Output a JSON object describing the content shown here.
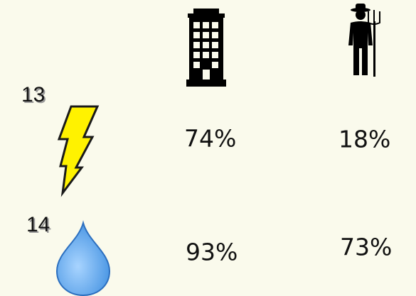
{
  "rows": [
    {
      "label": "13",
      "values": [
        "74%",
        "18%"
      ]
    },
    {
      "label": "14",
      "values": [
        "93%",
        "73%"
      ]
    }
  ]
}
